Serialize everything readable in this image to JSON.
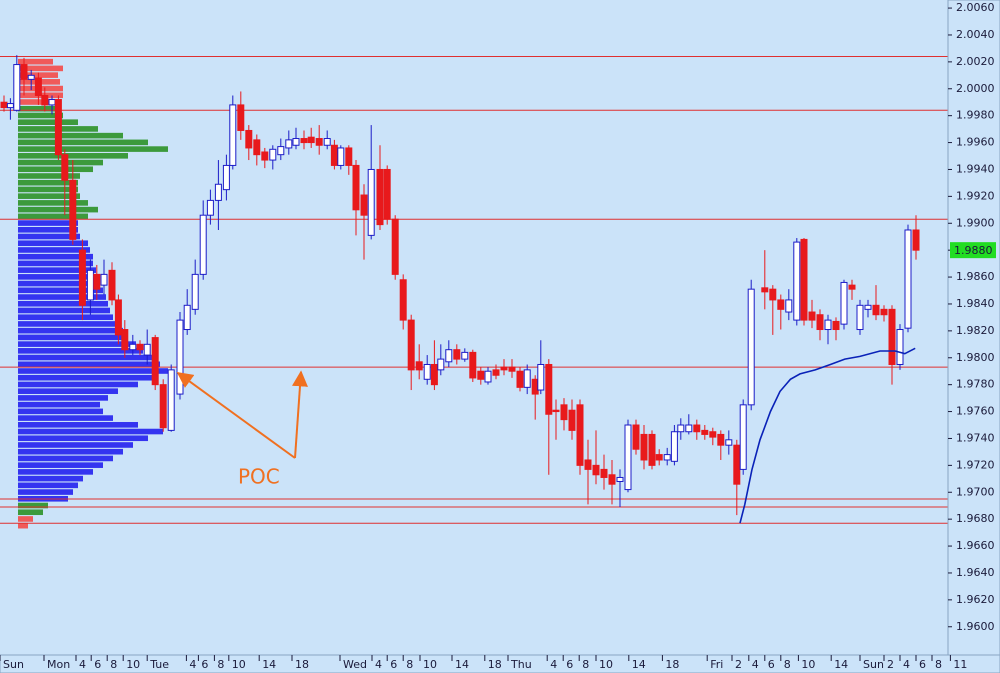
{
  "chart_data": {
    "type": "candlestick",
    "x": [
      0.5,
      1.3,
      2.1,
      3,
      3.9,
      4.8,
      5.6,
      6.5,
      7.3,
      8.1,
      9.1,
      10.3,
      11.3,
      12.1,
      13,
      14,
      14.8,
      15.6,
      16.6,
      17.5,
      18.4,
      19.4,
      20.4,
      21.4,
      22.5,
      23.4,
      24.4,
      25.4,
      26.3,
      27.3,
      28.3,
      29.1,
      30.1,
      31.1,
      32.1,
      33.1,
      34.1,
      35.1,
      36.1,
      37,
      38,
      38.9,
      39.9,
      40.9,
      41.8,
      42.6,
      43.6,
      44.5,
      45.5,
      46.4,
      47.5,
      48.4,
      49.4,
      50.4,
      51.4,
      52.4,
      53.4,
      54.3,
      55.1,
      56.1,
      57.1,
      58.1,
      59.1,
      60.1,
      61,
      62,
      63,
      64,
      65,
      65.9,
      66.9,
      67.6,
      68.6,
      69.5,
      70.5,
      71.5,
      72.5,
      73.5,
      74.5,
      75.5,
      76.5,
      77.5,
      78.5,
      79.5,
      80.5,
      81.5,
      82.4,
      83.4,
      84.3,
      85.1,
      86.1,
      87.1,
      88.1,
      89.1,
      90.1,
      91.1,
      92.1,
      92.9,
      93.9,
      95.6,
      96.6,
      97.6,
      98.6,
      99.6,
      100.5,
      101.5,
      102.5,
      103.5,
      104.5,
      105.5,
      106.5,
      107.5,
      108.5,
      109.5,
      110.5,
      111.5,
      112.5,
      113.5,
      114.5
    ],
    "open": [
      1.999,
      1.9986,
      1.9984,
      2.0018,
      2.0007,
      2.0008,
      1.9995,
      1.9988,
      1.9992,
      1.9951,
      1.9932,
      1.988,
      1.9843,
      1.9862,
      1.9854,
      1.9865,
      1.9843,
      1.9821,
      1.9806,
      1.981,
      1.9802,
      1.9815,
      1.978,
      1.9746,
      1.9773,
      1.9821,
      1.9836,
      1.9862,
      1.9906,
      1.9917,
      1.9925,
      1.9943,
      1.9988,
      1.9969,
      1.9962,
      1.9953,
      1.9947,
      1.9951,
      1.9956,
      1.9958,
      1.9963,
      1.9964,
      1.9963,
      1.9958,
      1.9958,
      1.9943,
      1.9956,
      1.9943,
      1.9921,
      1.9891,
      1.994,
      1.994,
      1.9903,
      1.9858,
      1.9828,
      1.9797,
      1.9784,
      1.9795,
      1.9791,
      1.9797,
      1.9806,
      1.9799,
      1.9804,
      1.979,
      1.9782,
      1.9791,
      1.9793,
      1.9793,
      1.979,
      1.9778,
      1.9784,
      1.9776,
      1.9795,
      1.9761,
      1.9765,
      1.9761,
      1.9765,
      1.9724,
      1.972,
      1.9717,
      1.9713,
      1.9708,
      1.9702,
      1.975,
      1.9743,
      1.9743,
      1.9728,
      1.9724,
      1.9723,
      1.9745,
      1.9745,
      1.975,
      1.9746,
      1.9745,
      1.9743,
      1.9735,
      1.9735,
      1.9717,
      1.9765,
      1.9852,
      1.9851,
      1.9843,
      1.9834,
      1.9828,
      1.9888,
      1.9834,
      1.9832,
      1.9821,
      1.9827,
      1.9825,
      1.9854,
      1.9821,
      1.9836,
      1.9839,
      1.9836,
      1.9836,
      1.9795,
      1.9822,
      1.9895
    ],
    "high": [
      1.9995,
      1.9993,
      2.0025,
      2.0023,
      2.0014,
      2.0012,
      2.0001,
      1.9995,
      1.9995,
      1.9955,
      1.9947,
      1.9888,
      1.9873,
      1.9869,
      1.9873,
      1.9871,
      1.9847,
      1.9828,
      1.9817,
      1.9813,
      1.9821,
      1.9817,
      1.9784,
      1.9795,
      1.9834,
      1.9851,
      1.9873,
      1.9917,
      1.9925,
      1.9947,
      1.9951,
      1.9995,
      1.9998,
      1.9973,
      1.9966,
      1.9956,
      1.9958,
      1.9963,
      1.9969,
      1.9971,
      1.9969,
      1.9971,
      1.9973,
      1.9969,
      1.9962,
      1.9958,
      1.9958,
      1.9947,
      1.9929,
      1.9973,
      1.9958,
      1.9943,
      1.9906,
      1.9862,
      1.9832,
      1.981,
      1.9802,
      1.9813,
      1.981,
      1.9813,
      1.981,
      1.9807,
      1.9806,
      1.9793,
      1.9793,
      1.9795,
      1.9799,
      1.9799,
      1.9793,
      1.9795,
      1.9787,
      1.9813,
      1.9799,
      1.9769,
      1.977,
      1.9769,
      1.9769,
      1.9739,
      1.9746,
      1.9728,
      1.9724,
      1.9717,
      1.9754,
      1.9754,
      1.975,
      1.9746,
      1.9732,
      1.9733,
      1.975,
      1.9755,
      1.9758,
      1.9754,
      1.975,
      1.9748,
      1.9746,
      1.9746,
      1.9739,
      1.9769,
      1.9858,
      1.988,
      1.9854,
      1.9847,
      1.9851,
      1.9889,
      1.9889,
      1.9843,
      1.9836,
      1.9832,
      1.983,
      1.9858,
      1.9858,
      1.9843,
      1.9843,
      1.9854,
      1.9839,
      1.9839,
      1.9825,
      1.9899,
      1.9906
    ],
    "low": [
      1.9983,
      1.9977,
      1.9983,
      1.9995,
      1.9999,
      1.9988,
      1.9983,
      1.9981,
      1.9947,
      1.9906,
      1.9884,
      1.9828,
      1.9832,
      1.9843,
      1.9847,
      1.9839,
      1.981,
      1.98,
      1.9802,
      1.9802,
      1.9795,
      1.9776,
      1.9745,
      1.9745,
      1.9769,
      1.9817,
      1.9832,
      1.9858,
      1.9899,
      1.9895,
      1.9917,
      1.994,
      1.9962,
      1.9947,
      1.9943,
      1.9941,
      1.994,
      1.9947,
      1.9951,
      1.9955,
      1.9955,
      1.9956,
      1.9951,
      1.9955,
      1.994,
      1.994,
      1.9936,
      1.9891,
      1.9873,
      1.9888,
      1.9895,
      1.9899,
      1.9858,
      1.9821,
      1.9776,
      1.9784,
      1.978,
      1.9776,
      1.9787,
      1.9793,
      1.9795,
      1.9797,
      1.9782,
      1.978,
      1.978,
      1.9784,
      1.9787,
      1.9785,
      1.9775,
      1.9773,
      1.9754,
      1.9773,
      1.9713,
      1.9739,
      1.9746,
      1.9739,
      1.9713,
      1.9691,
      1.9706,
      1.9702,
      1.9691,
      1.9689,
      1.97,
      1.9728,
      1.9717,
      1.9717,
      1.972,
      1.972,
      1.972,
      1.9739,
      1.9743,
      1.9739,
      1.9739,
      1.9735,
      1.9724,
      1.9728,
      1.9683,
      1.9713,
      1.9761,
      1.9836,
      1.9817,
      1.9821,
      1.9828,
      1.9824,
      1.9824,
      1.9822,
      1.9813,
      1.981,
      1.9813,
      1.9821,
      1.9843,
      1.9817,
      1.983,
      1.9828,
      1.9827,
      1.978,
      1.9791,
      1.9819,
      1.9873
    ],
    "close": [
      1.9986,
      1.9989,
      2.0018,
      2.0007,
      2.001,
      1.9995,
      1.9988,
      1.9992,
      1.9951,
      1.9932,
      1.9888,
      1.9839,
      1.9865,
      1.9851,
      1.9862,
      1.9843,
      1.9817,
      1.9806,
      1.981,
      1.9806,
      1.981,
      1.978,
      1.9748,
      1.9791,
      1.9828,
      1.9839,
      1.9862,
      1.9906,
      1.9917,
      1.9929,
      1.9943,
      1.9988,
      1.9969,
      1.9956,
      1.9951,
      1.9947,
      1.9955,
      1.9957,
      1.9962,
      1.9963,
      1.996,
      1.996,
      1.9958,
      1.9963,
      1.9943,
      1.9956,
      1.9943,
      1.991,
      1.9906,
      1.994,
      1.9899,
      1.9903,
      1.9862,
      1.9828,
      1.9791,
      1.9791,
      1.9795,
      1.978,
      1.9799,
      1.9806,
      1.9799,
      1.9804,
      1.9785,
      1.9784,
      1.979,
      1.9787,
      1.9791,
      1.979,
      1.9778,
      1.9791,
      1.9773,
      1.9795,
      1.9758,
      1.976,
      1.9754,
      1.9746,
      1.972,
      1.9717,
      1.9713,
      1.9711,
      1.9706,
      1.9711,
      1.975,
      1.9732,
      1.9724,
      1.972,
      1.9724,
      1.9728,
      1.9745,
      1.975,
      1.975,
      1.9745,
      1.9743,
      1.9741,
      1.9735,
      1.9739,
      1.9706,
      1.9765,
      1.9851,
      1.9849,
      1.9843,
      1.9836,
      1.9843,
      1.9886,
      1.9828,
      1.9828,
      1.9821,
      1.9828,
      1.9821,
      1.9856,
      1.9851,
      1.9839,
      1.9839,
      1.9832,
      1.9832,
      1.9795,
      1.9821,
      1.9895,
      1.988
    ],
    "up_color": "#1c1cc8",
    "down_color": "#e8191c",
    "xlim": [
      0,
      125
    ],
    "xticks": [
      {
        "value": 0,
        "label": "Sun"
      },
      {
        "value": 5.5,
        "label": "Mon"
      },
      {
        "value": 9.5,
        "label": "4"
      },
      {
        "value": 11.4,
        "label": "6"
      },
      {
        "value": 13.4,
        "label": "8"
      },
      {
        "value": 15.4,
        "label": "10"
      },
      {
        "value": 18.4,
        "label": "Tue"
      },
      {
        "value": 23.3,
        "label": "4"
      },
      {
        "value": 24.8,
        "label": "6"
      },
      {
        "value": 26.8,
        "label": "8"
      },
      {
        "value": 28.6,
        "label": "10"
      },
      {
        "value": 32.4,
        "label": "14"
      },
      {
        "value": 36.5,
        "label": "18"
      },
      {
        "value": 42.5,
        "label": "Wed"
      },
      {
        "value": 46.5,
        "label": "4"
      },
      {
        "value": 48.4,
        "label": "6"
      },
      {
        "value": 50.4,
        "label": "8"
      },
      {
        "value": 52.5,
        "label": "10"
      },
      {
        "value": 56.5,
        "label": "14"
      },
      {
        "value": 60.6,
        "label": "18"
      },
      {
        "value": 63.5,
        "label": "Thu"
      },
      {
        "value": 68.4,
        "label": "4"
      },
      {
        "value": 70.4,
        "label": "6"
      },
      {
        "value": 72.4,
        "label": "8"
      },
      {
        "value": 74.5,
        "label": "10"
      },
      {
        "value": 78.6,
        "label": "14"
      },
      {
        "value": 82.8,
        "label": "18"
      },
      {
        "value": 88.4,
        "label": "Fri"
      },
      {
        "value": 91.5,
        "label": "2"
      },
      {
        "value": 93.6,
        "label": "4"
      },
      {
        "value": 95.6,
        "label": "6"
      },
      {
        "value": 97.6,
        "label": "8"
      },
      {
        "value": 99.8,
        "label": "10"
      },
      {
        "value": 103.9,
        "label": "14"
      },
      {
        "value": 107.5,
        "label": "Sun"
      },
      {
        "value": 110.5,
        "label": "2"
      },
      {
        "value": 112.5,
        "label": "4"
      },
      {
        "value": 114.5,
        "label": "6"
      },
      {
        "value": 116.5,
        "label": "8"
      },
      {
        "value": 118.8,
        "label": "11"
      }
    ],
    "ylim": [
      1.9579,
      2.0066
    ],
    "yticks": [
      {
        "value": 1.96,
        "label": "1.9600"
      },
      {
        "value": 1.962,
        "label": "1.9620"
      },
      {
        "value": 1.964,
        "label": "1.9640"
      },
      {
        "value": 1.966,
        "label": "1.9660"
      },
      {
        "value": 1.968,
        "label": "1.9680"
      },
      {
        "value": 1.97,
        "label": "1.9700"
      },
      {
        "value": 1.972,
        "label": "1.9720"
      },
      {
        "value": 1.974,
        "label": "1.9740"
      },
      {
        "value": 1.976,
        "label": "1.9760"
      },
      {
        "value": 1.978,
        "label": "1.9780"
      },
      {
        "value": 1.98,
        "label": "1.9800"
      },
      {
        "value": 1.982,
        "label": "1.9820"
      },
      {
        "value": 1.984,
        "label": "1.9840"
      },
      {
        "value": 1.986,
        "label": "1.9860"
      },
      {
        "value": 1.988,
        "label": "1.9880"
      },
      {
        "value": 1.99,
        "label": "1.9900"
      },
      {
        "value": 1.992,
        "label": "1.9920"
      },
      {
        "value": 1.994,
        "label": "1.9940"
      },
      {
        "value": 1.996,
        "label": "1.9960"
      },
      {
        "value": 1.998,
        "label": "1.9980"
      },
      {
        "value": 2.0,
        "label": "2.0000"
      },
      {
        "value": 2.002,
        "label": "2.0020"
      },
      {
        "value": 2.004,
        "label": "2.0040"
      },
      {
        "value": 2.006,
        "label": "2.0060"
      }
    ],
    "grid": false,
    "levels": {
      "color": "#e03030",
      "values": [
        2.0024,
        1.9984,
        1.9903,
        1.9793,
        1.9695,
        1.9689,
        1.9677
      ]
    },
    "profile": [
      {
        "color": "#f05a5a",
        "prices": [
          2.002,
          2.0015,
          2.001,
          2.0005,
          2.0,
          1.9995,
          1.999
        ],
        "volumes": [
          35,
          45,
          40,
          42,
          45,
          45,
          40
        ]
      },
      {
        "color": "#3c9a3c",
        "prices": [
          1.9985,
          1.998,
          1.9975,
          1.997,
          1.9965,
          1.996,
          1.9955,
          1.995,
          1.9945,
          1.994,
          1.9935,
          1.993,
          1.9925,
          1.992,
          1.9915,
          1.991,
          1.9905
        ],
        "volumes": [
          40,
          45,
          60,
          80,
          105,
          130,
          150,
          110,
          85,
          75,
          62,
          60,
          60,
          62,
          70,
          80,
          70
        ]
      },
      {
        "color": "#3434f0",
        "prices": [
          1.99,
          1.9895,
          1.989,
          1.9885,
          1.988,
          1.9875,
          1.987,
          1.9865,
          1.986,
          1.9855,
          1.985,
          1.9845,
          1.984,
          1.9835,
          1.983,
          1.9825,
          1.982,
          1.9815,
          1.981,
          1.9805,
          1.98,
          1.9795,
          1.979,
          1.9785,
          1.978,
          1.9775,
          1.977,
          1.9765,
          1.976,
          1.9755,
          1.975,
          1.9745,
          1.974,
          1.9735,
          1.973,
          1.9725,
          1.972,
          1.9715,
          1.971,
          1.9705,
          1.97,
          1.9695
        ],
        "volumes": [
          60,
          60,
          62,
          70,
          72,
          75,
          75,
          78,
          80,
          82,
          85,
          88,
          90,
          92,
          95,
          100,
          105,
          110,
          118,
          125,
          135,
          142,
          150,
          140,
          120,
          100,
          90,
          82,
          85,
          95,
          120,
          145,
          130,
          115,
          105,
          95,
          85,
          75,
          65,
          60,
          55,
          50
        ]
      },
      {
        "color": "#3c9a3c",
        "prices": [
          1.969,
          1.9685
        ],
        "volumes": [
          30,
          25
        ]
      },
      {
        "color": "#f05a5a",
        "prices": [
          1.968,
          1.9675
        ],
        "volumes": [
          15,
          10
        ]
      }
    ],
    "ma": {
      "color": "#0a22b8",
      "x": [
        92.5,
        93.1,
        94,
        95,
        96.3,
        97.5,
        98.8,
        100,
        101.9,
        103.8,
        105.6,
        107.5,
        110,
        111.9,
        113.1,
        114.4
      ],
      "values": [
        1.9677,
        1.9691,
        1.9717,
        1.9739,
        1.976,
        1.9775,
        1.9784,
        1.9788,
        1.9791,
        1.9795,
        1.9799,
        1.9801,
        1.9805,
        1.9805,
        1.9803,
        1.9807
      ]
    },
    "last_price": {
      "value": 1.988,
      "label": "1.9880",
      "color": "#22dd22"
    },
    "annotation": "POC"
  }
}
